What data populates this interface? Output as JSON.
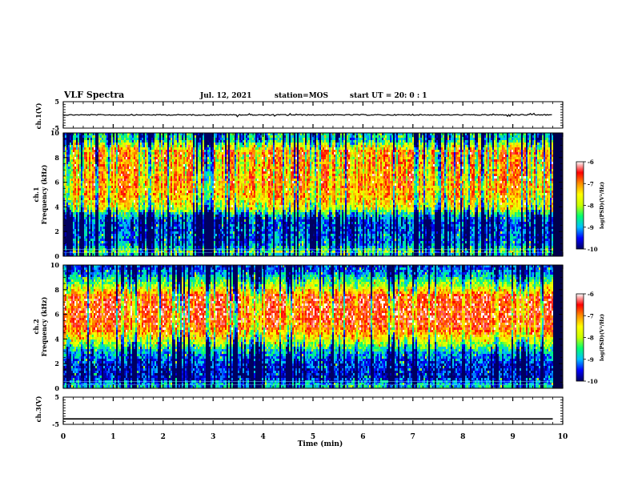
{
  "header": {
    "title": "VLF Spectra",
    "date": "Jul. 12, 2021",
    "station": "station=MOS",
    "start": "start UT = 20: 0 : 1"
  },
  "chart_data": [
    {
      "type": "line",
      "name": "ch1-waveform",
      "ylabel": "ch.1(V)",
      "ylim": [
        -5,
        5
      ],
      "yticks": [
        5,
        -5
      ],
      "x": [
        0,
        9.8
      ],
      "values": [
        0,
        0
      ],
      "xlim": [
        0,
        10
      ]
    },
    {
      "type": "heatmap",
      "name": "ch1-spectrogram",
      "ylabel": "ch.1 Frequency (kHz)",
      "ylabel_lines": [
        "ch.1",
        "Frequency (kHz)"
      ],
      "ylim": [
        0,
        10
      ],
      "yticks": [
        0,
        2,
        4,
        6,
        8,
        10
      ],
      "xlim": [
        0,
        10
      ],
      "data_extent_min": 9.8,
      "band_kHz": [
        {
          "f": 9.5,
          "level": -8.6
        },
        {
          "f": 9.0,
          "level": -7.6
        },
        {
          "f": 8.5,
          "level": -6.7
        },
        {
          "f": 8.0,
          "level": -6.9
        },
        {
          "f": 7.0,
          "level": -6.9
        },
        {
          "f": 6.0,
          "level": -6.8
        },
        {
          "f": 5.0,
          "level": -7.0
        },
        {
          "f": 4.0,
          "level": -7.4
        },
        {
          "f": 3.5,
          "level": -8.6
        },
        {
          "f": 3.0,
          "level": -9.2
        },
        {
          "f": 2.0,
          "level": -9.2
        },
        {
          "f": 1.0,
          "level": -9.0
        },
        {
          "f": 0.5,
          "level": -8.0
        },
        {
          "f": 0.2,
          "level": -8.8
        }
      ]
    },
    {
      "type": "heatmap",
      "name": "ch2-spectrogram",
      "ylabel": "ch.2 Frequency (kHz)",
      "ylabel_lines": [
        "ch.2",
        "Frequency (kHz)"
      ],
      "ylim": [
        0,
        10
      ],
      "yticks": [
        0,
        2,
        4,
        6,
        8,
        10
      ],
      "xlim": [
        0,
        10
      ],
      "data_extent_min": 9.8,
      "band_kHz": [
        {
          "f": 9.8,
          "level": -9.4
        },
        {
          "f": 9.2,
          "level": -8.9
        },
        {
          "f": 8.6,
          "level": -8.2
        },
        {
          "f": 8.0,
          "level": -7.4
        },
        {
          "f": 7.5,
          "level": -6.6
        },
        {
          "f": 6.0,
          "level": -6.5
        },
        {
          "f": 5.0,
          "level": -6.7
        },
        {
          "f": 4.3,
          "level": -7.3
        },
        {
          "f": 3.6,
          "level": -8.2
        },
        {
          "f": 3.0,
          "level": -8.9
        },
        {
          "f": 2.0,
          "level": -9.5
        },
        {
          "f": 1.0,
          "level": -9.6
        },
        {
          "f": 0.4,
          "level": -8.8
        }
      ]
    },
    {
      "type": "line",
      "name": "ch3-waveform",
      "ylabel": "ch.3(V)",
      "ylim": [
        -5,
        5
      ],
      "yticks": [
        5,
        -5
      ],
      "x": [
        0,
        9.8
      ],
      "values": [
        -3,
        -3
      ],
      "xlim": [
        0,
        10
      ],
      "xlabel": "Time (min)",
      "xticks": [
        0,
        1,
        2,
        3,
        4,
        5,
        6,
        7,
        8,
        9,
        10
      ]
    }
  ],
  "colorbar": {
    "label": "log(PSD)(V²/Hz)",
    "ticks": [
      -6,
      -7,
      -8,
      -9,
      -10
    ],
    "range": [
      -10,
      -6
    ],
    "colors": [
      "#000060",
      "#0000ff",
      "#00c0ff",
      "#00ff70",
      "#c8ff00",
      "#ffff00",
      "#ff9000",
      "#ff0000",
      "#ffffff"
    ]
  }
}
